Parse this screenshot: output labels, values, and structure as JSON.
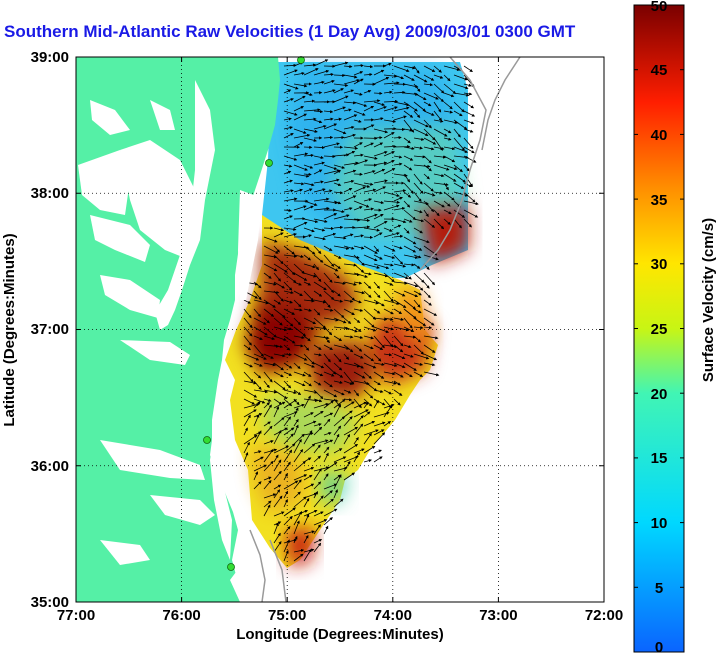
{
  "title": "Southern Mid-Atlantic Raw Velocities (1 Day Avg) 2009/03/01 0300 GMT",
  "x_axis": {
    "label": "Longitude (Degrees:Minutes)",
    "ticks": [
      "77:00",
      "76:00",
      "75:00",
      "74:00",
      "73:00",
      "72:00"
    ]
  },
  "y_axis": {
    "label": "Latitude (Degrees:Minutes)",
    "ticks": [
      "39:00",
      "38:00",
      "37:00",
      "36:00",
      "35:00"
    ]
  },
  "colorbar": {
    "label": "Surface Velocity (cm/s)",
    "min": 0,
    "max": 50,
    "ticks": [
      "50",
      "45",
      "40",
      "35",
      "30",
      "25",
      "20",
      "15",
      "10",
      "5",
      "0"
    ]
  },
  "map_extent": {
    "lon": [
      -77,
      -72
    ],
    "lat": [
      35,
      39
    ]
  },
  "grid": "dotted",
  "colors": {
    "land": "#55f0a6",
    "title": "#1a1ae6",
    "station": "#33dd33",
    "bathymetry": "#9a9a9a"
  },
  "regions": [
    {
      "name": "northern-cool-field",
      "speed_cm_s": 10
    },
    {
      "name": "central-hotspot",
      "speed_cm_s": 45
    },
    {
      "name": "southern-mixed-field",
      "speed_cm_s": 25
    }
  ]
}
